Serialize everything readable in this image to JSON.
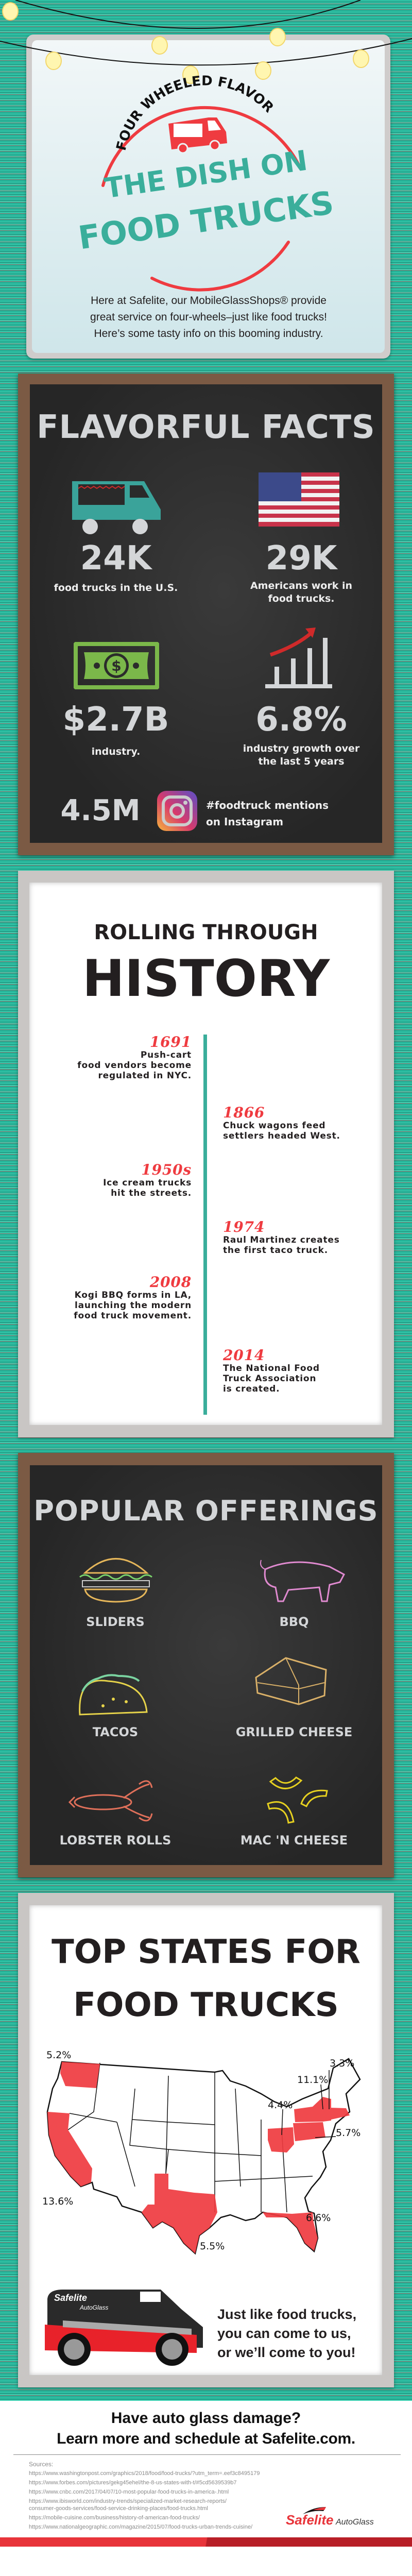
{
  "colors": {
    "teal": "#2fbfa3",
    "red": "#ef3b40",
    "chalkboard": "#2b2b2b",
    "wood": "#7b5a44",
    "dark_text": "#231f20"
  },
  "hero": {
    "kicker": "FOUR WHEELED FLAVOR",
    "title_line1": "THE DISH ON",
    "title_line2": "FOOD TRUCKS",
    "intro_lines": [
      "Here at Safelite, our MobileGlassShops® provide",
      "great service on four-wheels–just like food trucks!",
      "Here’s some tasty info on this booming industry."
    ],
    "icon": "food-truck-icon"
  },
  "facts": {
    "title": "FLAVORFUL FACTS",
    "items": [
      {
        "value": "24K",
        "lines": [
          "food trucks in the U.S."
        ],
        "icon": "food-truck-icon"
      },
      {
        "value": "29K",
        "lines": [
          "Americans work in",
          "food trucks."
        ],
        "icon": "us-flag-icon"
      },
      {
        "value": "$2.7B",
        "lines": [
          "industry."
        ],
        "icon": "dollar-bill-icon"
      },
      {
        "value": "6.8%",
        "lines": [
          "industry growth over",
          "the last 5 years"
        ],
        "icon": "growth-chart-icon"
      }
    ],
    "instagram": {
      "value": "4.5M",
      "lines": [
        "#foodtruck mentions",
        "on Instagram"
      ],
      "icon": "instagram-icon"
    }
  },
  "history": {
    "title_line1": "ROLLING THROUGH",
    "title_line2": "HISTORY",
    "events": [
      {
        "year": "1691",
        "lines": [
          "Push-cart",
          "food vendors become",
          "regulated in NYC."
        ],
        "side": "left"
      },
      {
        "year": "1866",
        "lines": [
          "Chuck wagons feed",
          "settlers headed West."
        ],
        "side": "right"
      },
      {
        "year": "1950s",
        "lines": [
          "Ice cream trucks",
          "hit the streets."
        ],
        "side": "left"
      },
      {
        "year": "1974",
        "lines": [
          "Raul Martinez creates",
          "the first taco truck."
        ],
        "side": "right"
      },
      {
        "year": "2008",
        "lines": [
          "Kogi BBQ forms in LA,",
          "launching the modern",
          "food truck movement."
        ],
        "side": "left"
      },
      {
        "year": "2014",
        "lines": [
          "The National Food",
          "Truck Association",
          "is created."
        ],
        "side": "right"
      }
    ]
  },
  "offerings": {
    "title": "POPULAR OFFERINGS",
    "items": [
      {
        "label": "SLIDERS",
        "icon": "burger-icon"
      },
      {
        "label": "BBQ",
        "icon": "pig-icon"
      },
      {
        "label": "TACOS",
        "icon": "taco-icon"
      },
      {
        "label": "GRILLED CHEESE",
        "icon": "sandwich-icon"
      },
      {
        "label": "LOBSTER ROLLS",
        "icon": "lobster-icon"
      },
      {
        "label": "MAC 'N CHEESE",
        "icon": "macaroni-icon"
      }
    ]
  },
  "states": {
    "title_line1": "TOP STATES FOR",
    "title_line2": "FOOD TRUCKS",
    "map_data": [
      {
        "state": "Washington",
        "share": "5.2%"
      },
      {
        "state": "California",
        "share": "13.6%"
      },
      {
        "state": "Texas",
        "share": "5.5%"
      },
      {
        "state": "Florida",
        "share": "6.6%"
      },
      {
        "state": "Ohio",
        "share": "4.4%"
      },
      {
        "state": "New York",
        "share": "11.1%"
      },
      {
        "state": "Massachusetts",
        "share": "3.3%"
      },
      {
        "state": "Pennsylvania",
        "share": "5.7%"
      }
    ],
    "van_brand": "Safelite",
    "van_sub": "AutoGlass",
    "tagline_lines": [
      "Just like food trucks,",
      "you can come to us,",
      "or we’ll come to you!"
    ]
  },
  "cta": {
    "line1": "Have auto glass damage?",
    "line2": "Learn more and schedule at Safelite.com."
  },
  "sources": {
    "label": "Sources:",
    "items": [
      "https://www.washingtonpost.com/graphics/2018/food/food-trucks/?utm_term=.eef3c8495179",
      "https://www.forbes.com/pictures/gekg45ehel/the-8-us-states-with-t/#5cd5639539b7",
      "https://www.cnbc.com/2017/04/07/10-most-popular-food-trucks-in-america-.html",
      "https://www.ibisworld.com/industry-trends/specialized-market-research-reports/",
      "consumer-goods-services/food-service-drinking-places/food-trucks.html",
      "https://mobile-cuisine.com/business/history-of-american-food-trucks/",
      "https://www.nationalgeographic.com/magazine/2015/07/food-trucks-urban-trends-cuisine/"
    ]
  },
  "logo": {
    "brand": "Safelite",
    "sub": "AutoGlass"
  }
}
